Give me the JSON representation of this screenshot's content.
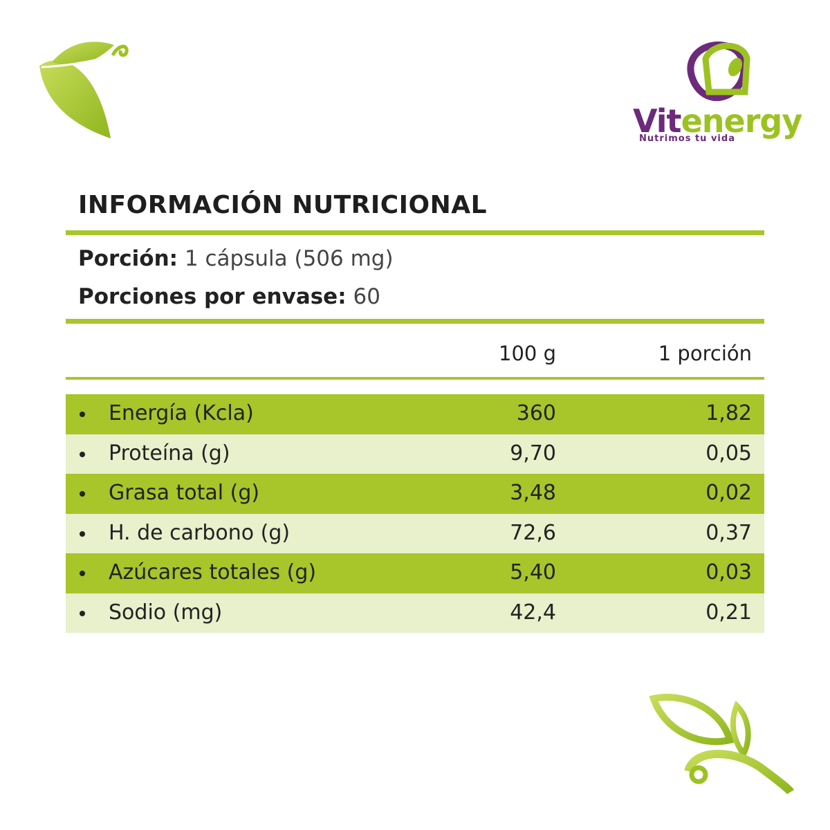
{
  "brand": {
    "part1": "Vit",
    "part2": "energy",
    "tagline": "Nutrimos tu vida"
  },
  "title": "INFORMACIÓN NUTRICIONAL",
  "serving": {
    "label": "Porción:",
    "value": "1 cápsula (506 mg)"
  },
  "servings_per_container": {
    "label": "Porciones por envase:",
    "value": "60"
  },
  "table": {
    "headers": [
      "100 g",
      "1 porción"
    ],
    "rows": [
      [
        "Energía (Kcla)",
        "360",
        "1,82"
      ],
      [
        "Proteína (g)",
        "9,70",
        "0,05"
      ],
      [
        "Grasa total (g)",
        "3,48",
        "0,02"
      ],
      [
        "H. de carbono (g)",
        "72,6",
        "0,37"
      ],
      [
        "Azúcares totales (g)",
        "5,40",
        "0,03"
      ],
      [
        "Sodio (mg)",
        "42,4",
        "0,21"
      ]
    ]
  }
}
